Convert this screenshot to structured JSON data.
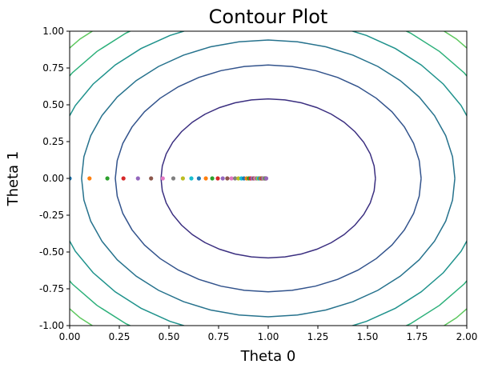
{
  "chart_data": {
    "type": "contour",
    "title": "Contour Plot",
    "xlabel": "Theta 0",
    "ylabel": "Theta 1",
    "xlim": [
      0.0,
      2.0
    ],
    "ylim": [
      -1.0,
      1.0
    ],
    "xticks": [
      "0.00",
      "0.25",
      "0.50",
      "0.75",
      "1.00",
      "1.25",
      "1.50",
      "1.75",
      "2.00"
    ],
    "yticks": [
      "-1.00",
      "-0.75",
      "-0.50",
      "-0.25",
      "0.00",
      "0.25",
      "0.50",
      "0.75",
      "1.00"
    ],
    "grid": false,
    "legend": "none",
    "function_center": [
      1.0,
      0.0
    ],
    "contour_levels": [
      {
        "rx": 0.54,
        "ry": 0.54,
        "color": "#3b2f80"
      },
      {
        "rx": 0.77,
        "ry": 0.77,
        "color": "#32538c"
      },
      {
        "rx": 0.94,
        "ry": 0.94,
        "color": "#26728d"
      },
      {
        "rx": 1.09,
        "ry": 1.09,
        "color": "#1f928c"
      },
      {
        "rx": 1.22,
        "ry": 1.22,
        "color": "#2cb07a"
      },
      {
        "rx": 1.34,
        "ry": 1.34,
        "color": "#5ec85f"
      },
      {
        "rx": 1.45,
        "ry": 1.45,
        "color": "#a2da37"
      }
    ],
    "descent_points": {
      "x": [
        0.0,
        0.1,
        0.19,
        0.271,
        0.344,
        0.41,
        0.469,
        0.522,
        0.57,
        0.613,
        0.651,
        0.686,
        0.718,
        0.746,
        0.771,
        0.794,
        0.815,
        0.833,
        0.85,
        0.865,
        0.878,
        0.891,
        0.902,
        0.911,
        0.92,
        0.928,
        0.935,
        0.942,
        0.948,
        0.953,
        0.958,
        0.962,
        0.966,
        0.969,
        0.972,
        0.975,
        0.977,
        0.98,
        0.982,
        0.984,
        0.985,
        0.987,
        0.988,
        0.989,
        0.99
      ],
      "y": 0.0,
      "colors": [
        "#1f77b4",
        "#ff7f0e",
        "#2ca02c",
        "#d62728",
        "#9467bd",
        "#8c564b",
        "#e377c2",
        "#7f7f7f",
        "#bcbd22",
        "#17becf"
      ]
    }
  }
}
